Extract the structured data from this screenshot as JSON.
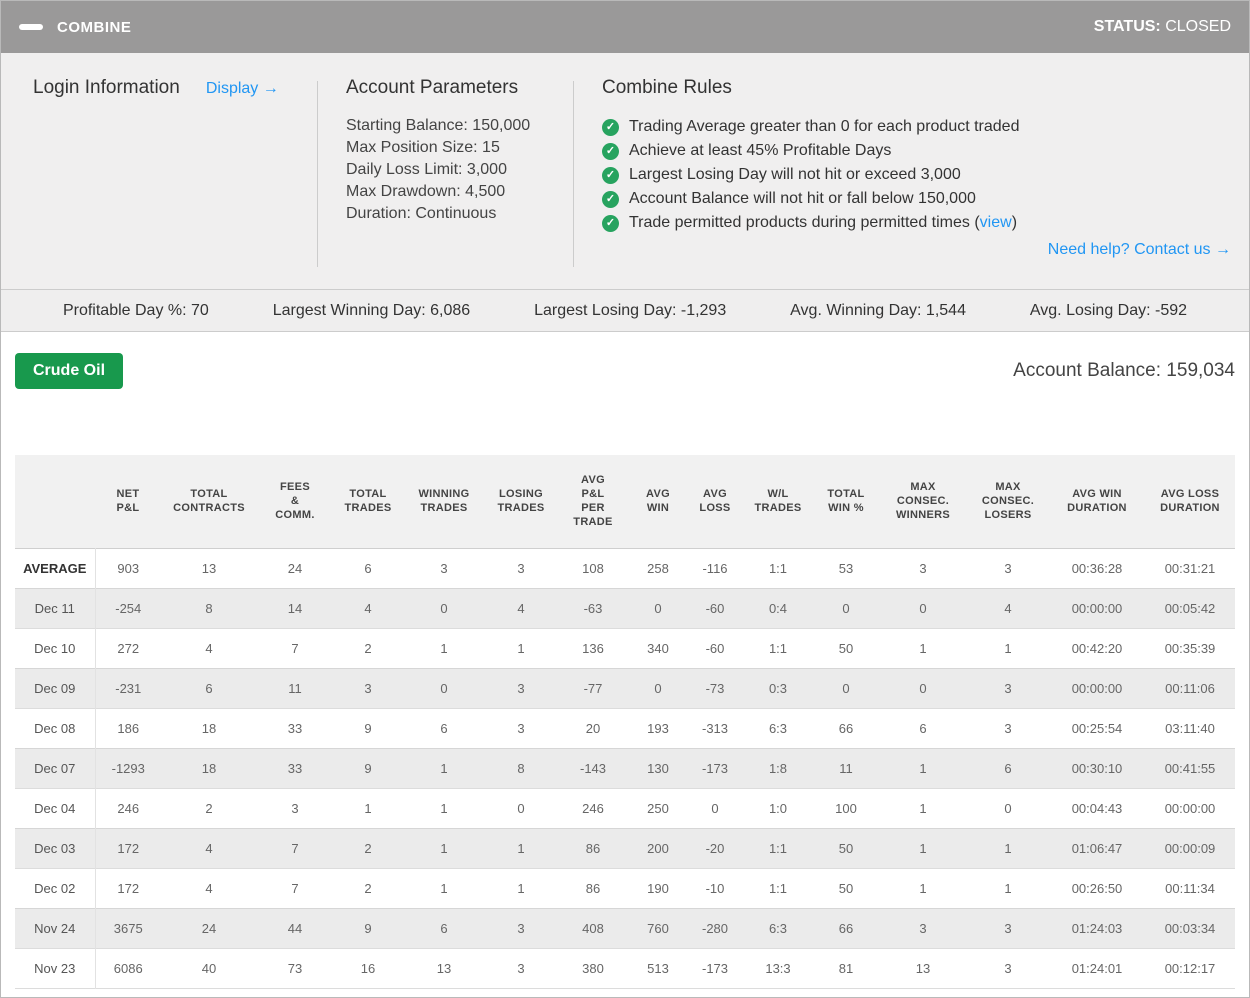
{
  "titlebar": {
    "title": "COMBINE",
    "status_label": "STATUS:",
    "status_value": "CLOSED"
  },
  "login": {
    "heading": "Login Information",
    "display_link": "Display →"
  },
  "account_parameters": {
    "heading": "Account Parameters",
    "items": [
      "Starting Balance: 150,000",
      "Max Position Size: 15",
      "Daily Loss Limit: 3,000",
      "Max Drawdown: 4,500",
      "Duration: Continuous"
    ]
  },
  "combine_rules": {
    "heading": "Combine Rules",
    "rules": [
      {
        "text": "Trading Average greater than 0 for each product traded"
      },
      {
        "text": "Achieve at least 45% Profitable Days"
      },
      {
        "text": "Largest Losing Day will not hit or exceed 3,000"
      },
      {
        "text": "Account Balance will not hit or fall below 150,000"
      },
      {
        "text": "Trade permitted products during permitted times",
        "link": "view"
      }
    ],
    "help_link": "Need help? Contact us →"
  },
  "stats": [
    "Profitable Day %: 70",
    "Largest Winning Day: 6,086",
    "Largest Losing Day: -1,293",
    "Avg. Winning Day: 1,544",
    "Avg. Losing Day: -592"
  ],
  "product_button": "Crude Oil",
  "account_balance": "Account Balance: 159,034",
  "colors": {
    "titlebar_gray": "#9a9999",
    "link_blue": "#2196f3",
    "check_green": "#27a35f",
    "button_green": "#18994d"
  },
  "table": {
    "columns": [
      "",
      "NET\nP&L",
      "TOTAL\nCONTRACTS",
      "FEES\n&\nCOMM.",
      "TOTAL\nTRADES",
      "WINNING\nTRADES",
      "LOSING\nTRADES",
      "AVG\nP&L\nPER\nTRADE",
      "AVG\nWIN",
      "AVG\nLOSS",
      "W/L\nTRADES",
      "TOTAL\nWIN %",
      "MAX\nCONSEC.\nWINNERS",
      "MAX\nCONSEC.\nLOSERS",
      "AVG WIN\nDURATION",
      "AVG LOSS\nDURATION"
    ],
    "rows": [
      {
        "label": "AVERAGE",
        "bold": true,
        "cells": [
          "903",
          "13",
          "24",
          "6",
          "3",
          "3",
          "108",
          "258",
          "-116",
          "1:1",
          "53",
          "3",
          "3",
          "00:36:28",
          "00:31:21"
        ]
      },
      {
        "label": "Dec 11",
        "bold": false,
        "cells": [
          "-254",
          "8",
          "14",
          "4",
          "0",
          "4",
          "-63",
          "0",
          "-60",
          "0:4",
          "0",
          "0",
          "4",
          "00:00:00",
          "00:05:42"
        ]
      },
      {
        "label": "Dec 10",
        "bold": false,
        "cells": [
          "272",
          "4",
          "7",
          "2",
          "1",
          "1",
          "136",
          "340",
          "-60",
          "1:1",
          "50",
          "1",
          "1",
          "00:42:20",
          "00:35:39"
        ]
      },
      {
        "label": "Dec 09",
        "bold": false,
        "cells": [
          "-231",
          "6",
          "11",
          "3",
          "0",
          "3",
          "-77",
          "0",
          "-73",
          "0:3",
          "0",
          "0",
          "3",
          "00:00:00",
          "00:11:06"
        ]
      },
      {
        "label": "Dec 08",
        "bold": false,
        "cells": [
          "186",
          "18",
          "33",
          "9",
          "6",
          "3",
          "20",
          "193",
          "-313",
          "6:3",
          "66",
          "6",
          "3",
          "00:25:54",
          "03:11:40"
        ]
      },
      {
        "label": "Dec 07",
        "bold": false,
        "cells": [
          "-1293",
          "18",
          "33",
          "9",
          "1",
          "8",
          "-143",
          "130",
          "-173",
          "1:8",
          "11",
          "1",
          "6",
          "00:30:10",
          "00:41:55"
        ]
      },
      {
        "label": "Dec 04",
        "bold": false,
        "cells": [
          "246",
          "2",
          "3",
          "1",
          "1",
          "0",
          "246",
          "250",
          "0",
          "1:0",
          "100",
          "1",
          "0",
          "00:04:43",
          "00:00:00"
        ]
      },
      {
        "label": "Dec 03",
        "bold": false,
        "cells": [
          "172",
          "4",
          "7",
          "2",
          "1",
          "1",
          "86",
          "200",
          "-20",
          "1:1",
          "50",
          "1",
          "1",
          "01:06:47",
          "00:00:09"
        ]
      },
      {
        "label": "Dec 02",
        "bold": false,
        "cells": [
          "172",
          "4",
          "7",
          "2",
          "1",
          "1",
          "86",
          "190",
          "-10",
          "1:1",
          "50",
          "1",
          "1",
          "00:26:50",
          "00:11:34"
        ]
      },
      {
        "label": "Nov 24",
        "bold": false,
        "cells": [
          "3675",
          "24",
          "44",
          "9",
          "6",
          "3",
          "408",
          "760",
          "-280",
          "6:3",
          "66",
          "3",
          "3",
          "01:24:03",
          "00:03:34"
        ]
      },
      {
        "label": "Nov 23",
        "bold": false,
        "cells": [
          "6086",
          "40",
          "73",
          "16",
          "13",
          "3",
          "380",
          "513",
          "-173",
          "13:3",
          "81",
          "13",
          "3",
          "01:24:01",
          "00:12:17"
        ]
      }
    ]
  }
}
